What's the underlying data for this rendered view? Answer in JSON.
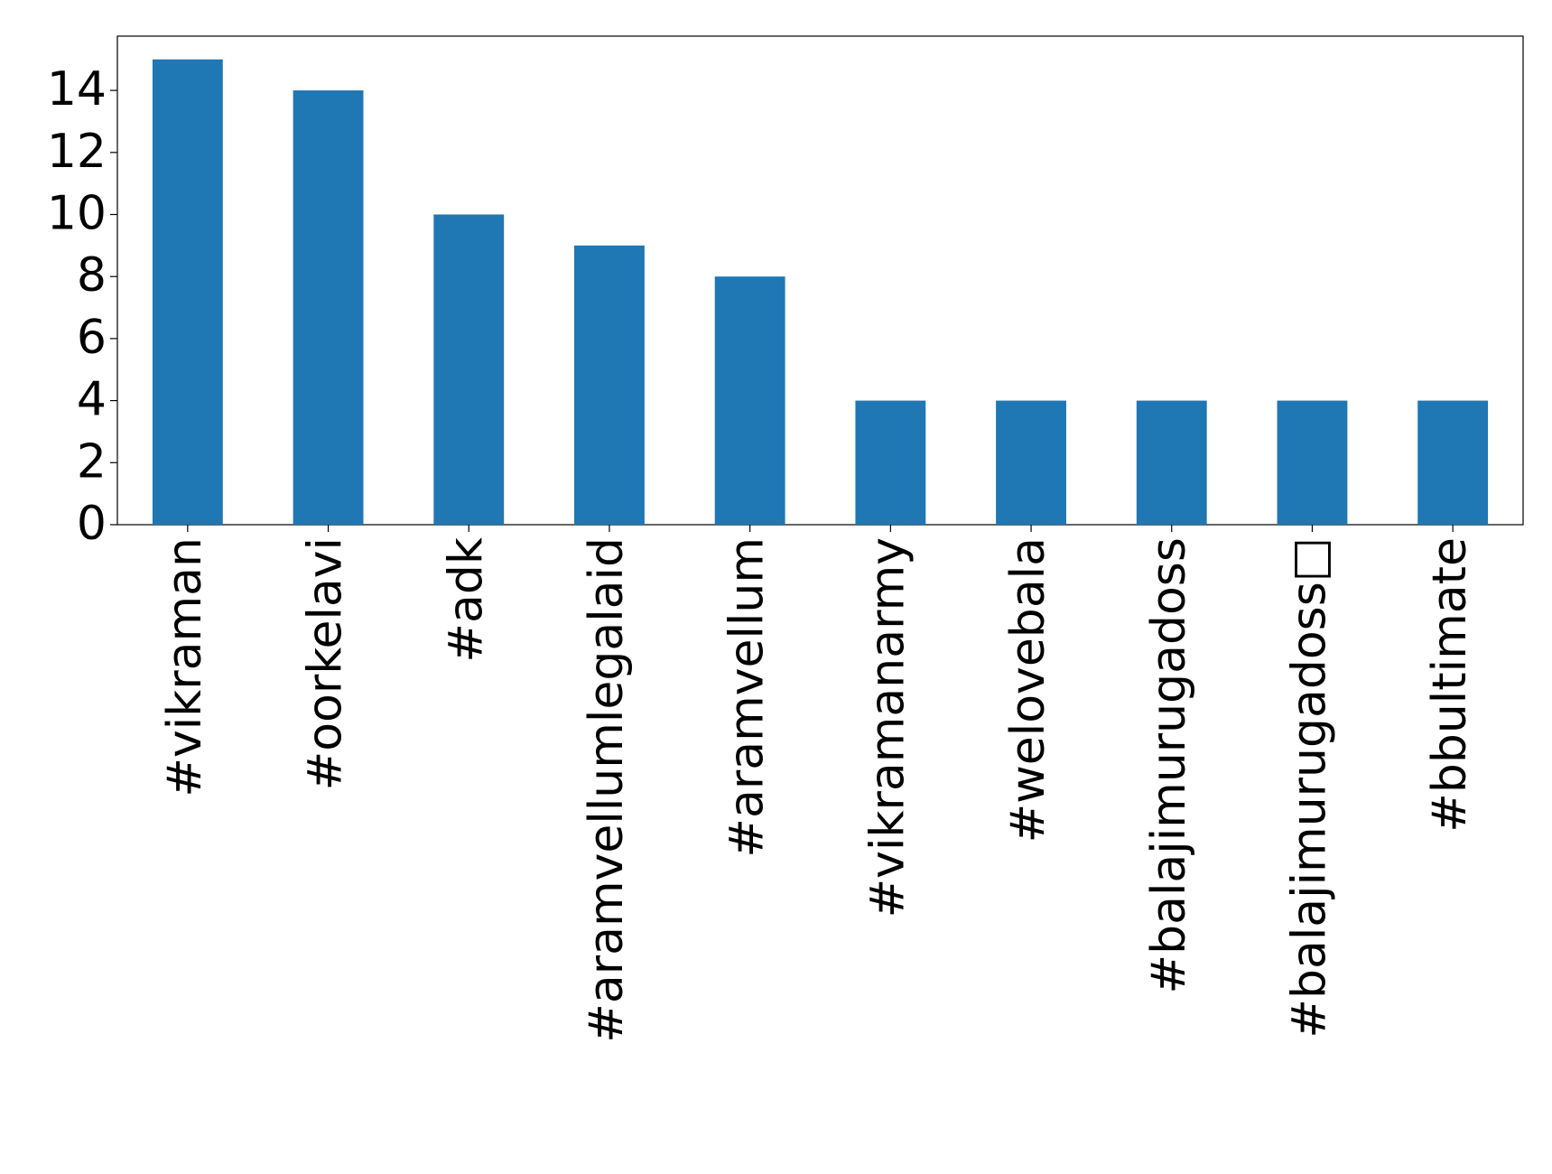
{
  "chart_data": {
    "type": "bar",
    "categories": [
      "#vikraman",
      "#oorkelavi",
      "#adk",
      "#aramvellumlegalaid",
      "#aramvellum",
      "#vikramanarmy",
      "#welovebala",
      "#balajimurugadoss",
      "#balajimurugadoss□",
      "#bbultimate"
    ],
    "values": [
      15,
      14,
      10,
      9,
      8,
      4,
      4,
      4,
      4,
      4
    ],
    "color": "#1f77b4",
    "ylim": [
      0,
      15.75
    ],
    "yticks": [
      0,
      2,
      4,
      6,
      8,
      10,
      12,
      14
    ],
    "grid": false
  }
}
